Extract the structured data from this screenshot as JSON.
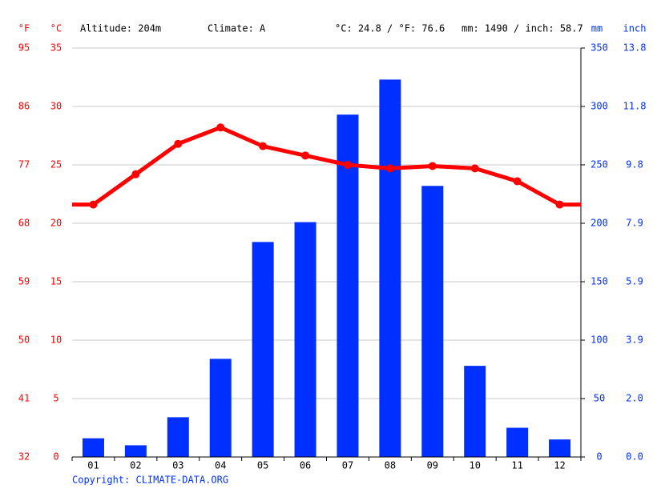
{
  "chart_data": {
    "type": "climate",
    "y_label_f": "°F",
    "y_label": "°C",
    "y2_label": "mm",
    "y2_label_inch": "inch",
    "annotations": [
      "Altitude: 204m",
      "Climate: A",
      "°C: 24.8 / °F: 76.6",
      "mm: 1490 / inch: 58.7"
    ],
    "footer": "Copyright: CLIMATE-DATA.ORG",
    "categories": [
      "01",
      "02",
      "03",
      "04",
      "05",
      "06",
      "07",
      "08",
      "09",
      "10",
      "11",
      "12"
    ],
    "temperature": {
      "color": "#ff0000",
      "axis": "y",
      "values": [
        21.6,
        24.2,
        26.8,
        28.2,
        26.6,
        25.8,
        25.0,
        24.7,
        24.9,
        24.7,
        23.6,
        21.6
      ]
    },
    "precipitation": {
      "color": "#0030ff",
      "axis": "y2",
      "values": [
        16,
        10,
        34,
        84,
        184,
        201,
        293,
        323,
        232,
        78,
        25,
        15
      ]
    },
    "ylim": [
      0,
      35
    ],
    "yticks": [
      0,
      5,
      10,
      15,
      20,
      25,
      30,
      35
    ],
    "yticks_f": [
      {
        "value": 0,
        "label": "32"
      },
      {
        "value": 5,
        "label": "41"
      },
      {
        "value": 10,
        "label": "50"
      },
      {
        "value": 15,
        "label": "59"
      },
      {
        "value": 20,
        "label": "68"
      },
      {
        "value": 25,
        "label": "77"
      },
      {
        "value": 30,
        "label": "86"
      },
      {
        "value": 35,
        "label": "95"
      }
    ],
    "y2lim": [
      0,
      350
    ],
    "y2ticks": [
      0,
      50,
      100,
      150,
      200,
      250,
      300,
      350
    ],
    "y2ticks_inch": [
      {
        "value": 0,
        "label": "0.0"
      },
      {
        "value": 50,
        "label": "2.0"
      },
      {
        "value": 100,
        "label": "3.9"
      },
      {
        "value": 150,
        "label": "5.9"
      },
      {
        "value": 200,
        "label": "7.9"
      },
      {
        "value": 250,
        "label": "9.8"
      },
      {
        "value": 300,
        "label": "11.8"
      },
      {
        "value": 350,
        "label": "13.8"
      }
    ],
    "grid": true
  }
}
